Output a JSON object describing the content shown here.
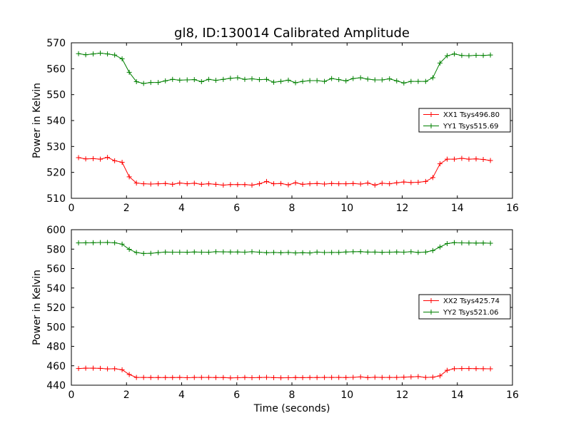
{
  "chart_data": [
    {
      "type": "line",
      "title": "gl8, ID:130014 Calibrated Amplitude",
      "xlabel": "",
      "ylabel": "Power in Kelvin",
      "xlim": [
        0,
        16
      ],
      "ylim": [
        510,
        570
      ],
      "xticks": [
        0,
        2,
        4,
        6,
        8,
        10,
        12,
        14,
        16
      ],
      "yticks": [
        510,
        520,
        530,
        540,
        550,
        560,
        570
      ],
      "legend_position": "center-right",
      "x": [
        0.26,
        0.52,
        0.79,
        1.05,
        1.31,
        1.57,
        1.84,
        2.1,
        2.36,
        2.62,
        2.88,
        3.15,
        3.41,
        3.67,
        3.93,
        4.2,
        4.46,
        4.72,
        4.98,
        5.24,
        5.51,
        5.77,
        6.03,
        6.29,
        6.55,
        6.82,
        7.08,
        7.34,
        7.6,
        7.87,
        8.13,
        8.39,
        8.65,
        8.91,
        9.18,
        9.44,
        9.7,
        9.96,
        10.22,
        10.49,
        10.75,
        11.01,
        11.27,
        11.54,
        11.8,
        12.06,
        12.32,
        12.58,
        12.85,
        13.11,
        13.37,
        13.63,
        13.89,
        14.16,
        14.42,
        14.68,
        14.94,
        15.2
      ],
      "series": [
        {
          "name": "XX1 Tsys496.80",
          "color": "#ff0000",
          "values": [
            525.7,
            525.2,
            525.3,
            525.1,
            525.8,
            524.5,
            523.9,
            518.3,
            515.9,
            515.6,
            515.5,
            515.6,
            515.7,
            515.4,
            515.9,
            515.6,
            515.8,
            515.4,
            515.6,
            515.4,
            515.1,
            515.3,
            515.3,
            515.3,
            515.1,
            515.6,
            516.5,
            515.6,
            515.7,
            515.2,
            516.0,
            515.4,
            515.6,
            515.7,
            515.5,
            515.7,
            515.6,
            515.6,
            515.7,
            515.5,
            515.9,
            515.1,
            515.8,
            515.6,
            516.0,
            516.3,
            516.1,
            516.2,
            516.5,
            518.0,
            523.3,
            525.1,
            525.1,
            525.4,
            525.1,
            525.2,
            525.0,
            524.6
          ]
        },
        {
          "name": "YY1 Tsys515.69",
          "color": "#008000",
          "values": [
            565.8,
            565.4,
            565.7,
            566.0,
            565.7,
            565.3,
            563.8,
            558.6,
            555.0,
            554.3,
            554.7,
            554.7,
            555.3,
            555.9,
            555.6,
            555.7,
            555.8,
            555.0,
            555.9,
            555.5,
            555.9,
            556.3,
            556.5,
            555.9,
            556.1,
            555.8,
            555.9,
            554.8,
            555.1,
            555.6,
            554.6,
            555.1,
            555.4,
            555.4,
            555.1,
            556.2,
            555.8,
            555.3,
            556.2,
            556.5,
            556.0,
            555.7,
            555.7,
            556.1,
            555.3,
            554.5,
            555.1,
            555.1,
            555.1,
            556.5,
            562.2,
            565.0,
            565.7,
            565.1,
            565.0,
            565.2,
            565.1,
            565.3
          ]
        }
      ]
    },
    {
      "type": "line",
      "title": "",
      "xlabel": "Time (seconds)",
      "ylabel": "Power in Kelvin",
      "xlim": [
        0,
        16
      ],
      "ylim": [
        440,
        600
      ],
      "xticks": [
        0,
        2,
        4,
        6,
        8,
        10,
        12,
        14,
        16
      ],
      "yticks": [
        440,
        460,
        480,
        500,
        520,
        540,
        560,
        580,
        600
      ],
      "legend_position": "center-right",
      "x": [
        0.26,
        0.52,
        0.79,
        1.05,
        1.31,
        1.57,
        1.84,
        2.1,
        2.36,
        2.62,
        2.88,
        3.15,
        3.41,
        3.67,
        3.93,
        4.2,
        4.46,
        4.72,
        4.98,
        5.24,
        5.51,
        5.77,
        6.03,
        6.29,
        6.55,
        6.82,
        7.08,
        7.34,
        7.6,
        7.87,
        8.13,
        8.39,
        8.65,
        8.91,
        9.18,
        9.44,
        9.7,
        9.96,
        10.22,
        10.49,
        10.75,
        11.01,
        11.27,
        11.54,
        11.8,
        12.06,
        12.32,
        12.58,
        12.85,
        13.11,
        13.37,
        13.63,
        13.89,
        14.16,
        14.42,
        14.68,
        14.94,
        15.2
      ],
      "series": [
        {
          "name": "XX2 Tsys425.74",
          "color": "#ff0000",
          "values": [
            457.2,
            457.5,
            457.5,
            457.3,
            456.8,
            457.0,
            455.9,
            451.0,
            448.0,
            448.0,
            447.9,
            447.9,
            447.9,
            447.9,
            448.0,
            447.7,
            448.0,
            448.0,
            448.0,
            447.9,
            447.9,
            447.5,
            447.7,
            448.0,
            447.7,
            447.9,
            448.1,
            447.8,
            447.6,
            447.7,
            447.9,
            447.8,
            447.9,
            447.9,
            448.0,
            448.0,
            448.0,
            447.9,
            448.1,
            448.5,
            447.8,
            448.2,
            448.0,
            448.0,
            448.0,
            448.3,
            448.5,
            448.9,
            448.0,
            448.3,
            449.6,
            455.3,
            457.0,
            457.2,
            457.2,
            457.1,
            457.0,
            456.9
          ]
        },
        {
          "name": "YY2 Tsys521.06",
          "color": "#008000",
          "values": [
            586.4,
            586.5,
            586.6,
            586.8,
            586.9,
            586.5,
            585.1,
            579.8,
            576.5,
            575.5,
            575.7,
            576.4,
            577.0,
            576.9,
            576.9,
            576.8,
            577.1,
            576.9,
            576.8,
            577.3,
            577.2,
            577.1,
            577.1,
            576.9,
            577.3,
            576.9,
            576.3,
            576.6,
            576.3,
            576.6,
            576.1,
            576.3,
            576.1,
            577.0,
            576.5,
            576.6,
            576.6,
            577.1,
            577.3,
            577.4,
            577.0,
            577.0,
            576.7,
            576.9,
            577.1,
            576.9,
            577.3,
            576.6,
            577.0,
            578.5,
            582.2,
            585.7,
            586.7,
            586.4,
            586.3,
            586.2,
            586.3,
            586.1
          ]
        }
      ]
    }
  ]
}
